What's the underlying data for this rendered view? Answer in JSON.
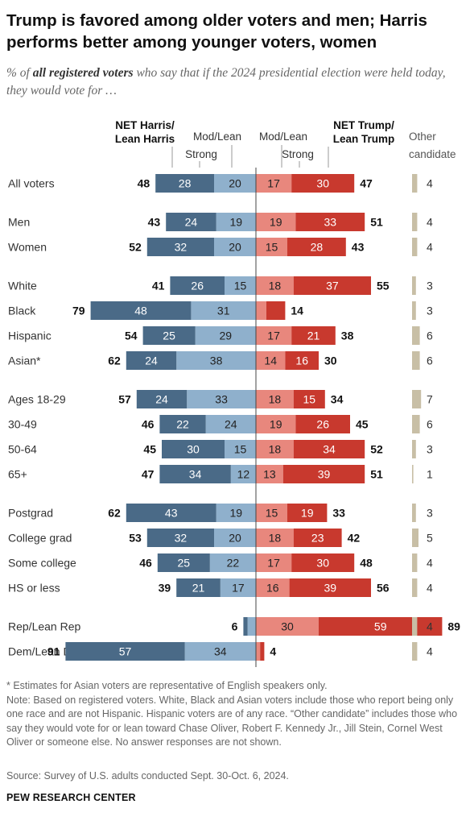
{
  "title": "Trump is favored among older voters and men; Harris performs better among younger voters, women",
  "subtitle": {
    "prefix": "% of ",
    "emphasis": "all registered voters",
    "suffix": " who say that if the 2024 presidential election were held today, they would vote for …"
  },
  "notes": [
    "* Estimates for Asian voters are representative of English speakers only.",
    "Note: Based on registered voters. White, Black and Asian voters include those who report being only one race and are not Hispanic. Hispanic voters are of any race. “Other candidate” includes those who say they would vote for or lean toward Chase Oliver, Robert F. Kennedy Jr., Jill Stein, Cornel West Oliver or someone else. No answer responses are not shown."
  ],
  "source": "Source: Survey of U.S. adults conducted Sept. 30-Oct. 6, 2024.",
  "brand": "PEW RESEARCH CENTER",
  "colors": {
    "harris_strong": "#4a6a87",
    "harris_lean": "#8fb0cc",
    "trump_lean": "#e8877d",
    "trump_strong": "#c8392e",
    "other": "#c8bfa6"
  },
  "chart_data": {
    "type": "bar",
    "stacked": "diverging",
    "headers": {
      "net_harris": [
        "NET Harris/",
        "Lean Harris"
      ],
      "net_trump": [
        "NET Trump/",
        "Lean Trump"
      ],
      "mod_lean_left": "Mod/Lean",
      "mod_lean_right": "Mod/Lean",
      "strong_left": "Strong",
      "strong_right": "Strong",
      "other": [
        "Other",
        "candidate"
      ]
    },
    "groups": [
      {
        "name": "All voters",
        "harris_net": 48,
        "harris_strong": 28,
        "harris_lean": 20,
        "trump_lean": 17,
        "trump_strong": 30,
        "trump_net": 47,
        "other": 4
      },
      {
        "name": "Men",
        "harris_net": 43,
        "harris_strong": 24,
        "harris_lean": 19,
        "trump_lean": 19,
        "trump_strong": 33,
        "trump_net": 51,
        "other": 4
      },
      {
        "name": "Women",
        "harris_net": 52,
        "harris_strong": 32,
        "harris_lean": 20,
        "trump_lean": 15,
        "trump_strong": 28,
        "trump_net": 43,
        "other": 4
      },
      {
        "name": "White",
        "harris_net": 41,
        "harris_strong": 26,
        "harris_lean": 15,
        "trump_lean": 18,
        "trump_strong": 37,
        "trump_net": 55,
        "other": 3
      },
      {
        "name": "Black",
        "harris_net": 79,
        "harris_strong": 48,
        "harris_lean": 31,
        "trump_lean": 5,
        "trump_strong": 9,
        "trump_net": 14,
        "other": 3
      },
      {
        "name": "Hispanic",
        "harris_net": 54,
        "harris_strong": 25,
        "harris_lean": 29,
        "trump_lean": 17,
        "trump_strong": 21,
        "trump_net": 38,
        "other": 6
      },
      {
        "name": "Asian*",
        "harris_net": 62,
        "harris_strong": 24,
        "harris_lean": 38,
        "trump_lean": 14,
        "trump_strong": 16,
        "trump_net": 30,
        "other": 6
      },
      {
        "name": "Ages 18-29",
        "harris_net": 57,
        "harris_strong": 24,
        "harris_lean": 33,
        "trump_lean": 18,
        "trump_strong": 15,
        "trump_net": 34,
        "other": 7
      },
      {
        "name": "30-49",
        "harris_net": 46,
        "harris_strong": 22,
        "harris_lean": 24,
        "trump_lean": 19,
        "trump_strong": 26,
        "trump_net": 45,
        "other": 6
      },
      {
        "name": "50-64",
        "harris_net": 45,
        "harris_strong": 30,
        "harris_lean": 15,
        "trump_lean": 18,
        "trump_strong": 34,
        "trump_net": 52,
        "other": 3
      },
      {
        "name": "65+",
        "harris_net": 47,
        "harris_strong": 34,
        "harris_lean": 12,
        "trump_lean": 13,
        "trump_strong": 39,
        "trump_net": 51,
        "other": 1
      },
      {
        "name": "Postgrad",
        "harris_net": 62,
        "harris_strong": 43,
        "harris_lean": 19,
        "trump_lean": 15,
        "trump_strong": 19,
        "trump_net": 33,
        "other": 3
      },
      {
        "name": "College grad",
        "harris_net": 53,
        "harris_strong": 32,
        "harris_lean": 20,
        "trump_lean": 18,
        "trump_strong": 23,
        "trump_net": 42,
        "other": 5
      },
      {
        "name": "Some college",
        "harris_net": 46,
        "harris_strong": 25,
        "harris_lean": 22,
        "trump_lean": 17,
        "trump_strong": 30,
        "trump_net": 48,
        "other": 4
      },
      {
        "name": "HS or less",
        "harris_net": 39,
        "harris_strong": 21,
        "harris_lean": 17,
        "trump_lean": 16,
        "trump_strong": 39,
        "trump_net": 56,
        "other": 4
      },
      {
        "name": "Rep/Lean Rep",
        "harris_net": 6,
        "harris_strong": 2,
        "harris_lean": 4,
        "trump_lean": 30,
        "trump_strong": 59,
        "trump_net": 89,
        "other": 4
      },
      {
        "name": "Dem/Lean Dem",
        "harris_net": 91,
        "harris_strong": 57,
        "harris_lean": 34,
        "trump_lean": 2,
        "trump_strong": 2,
        "trump_net": 4,
        "other": 4
      }
    ],
    "labeled_segment_min": 10,
    "section_breaks_after": [
      0,
      2,
      6,
      10,
      14
    ]
  }
}
